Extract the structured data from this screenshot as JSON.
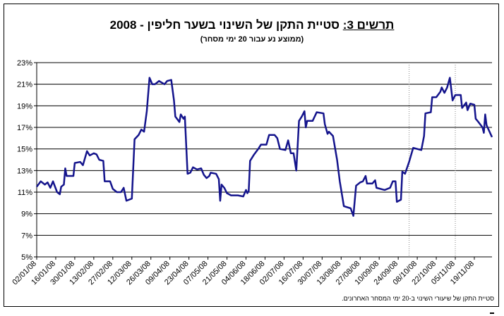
{
  "chart_data": {
    "type": "line",
    "title_label": "תרשים 3:",
    "title": "סטיית התקן של השינוי בשער חליפין - 2008",
    "subtitle": "(ממוצע נע עבור 20 ימי מסחר)",
    "note": "סטיית התקן של שיעורי השינוי ב-20 ימי המסחר האחרונים.",
    "x": [
      "02/01/08",
      "05/01/08",
      "08/01/08",
      "10/01/08",
      "12/01/08",
      "14/01/08",
      "17/01/08",
      "19/01/08",
      "20/01/08",
      "22/01/08",
      "23/01/08",
      "24/01/08",
      "29/01/08",
      "30/01/08",
      "03/02/08",
      "05/02/08",
      "08/02/08",
      "10/02/08",
      "13/02/08",
      "15/02/08",
      "17/02/08",
      "20/02/08",
      "21/02/08",
      "25/02/08",
      "27/02/08",
      "01/03/08",
      "04/03/08",
      "06/03/08",
      "08/03/08",
      "12/03/08",
      "14/03/08",
      "17/03/08",
      "19/03/08",
      "21/03/08",
      "23/03/08",
      "25/03/08",
      "27/03/08",
      "29/03/08",
      "01/04/08",
      "05/04/08",
      "07/04/08",
      "10/04/08",
      "12/04/08",
      "13/04/08",
      "16/04/08",
      "17/04/08",
      "19/04/08",
      "20/04/08",
      "22/04/08",
      "24/04/08",
      "26/04/08",
      "29/04/08",
      "02/05/08",
      "04/05/08",
      "06/05/08",
      "08/05/08",
      "09/05/08",
      "13/05/08",
      "15/05/08",
      "16/05/08",
      "17/05/08",
      "19/05/08",
      "21/05/08",
      "24/05/08",
      "29/05/08",
      "02/06/08",
      "04/06/08",
      "05/06/08",
      "06/06/08",
      "07/06/08",
      "10/06/08",
      "13/06/08",
      "15/06/08",
      "19/06/08",
      "21/06/08",
      "25/06/08",
      "27/06/08",
      "29/06/08",
      "03/07/08",
      "05/07/08",
      "07/07/08",
      "09/07/08",
      "11/07/08",
      "13/07/08",
      "15/07/08",
      "17/07/08",
      "18/07/08",
      "19/07/08",
      "23/07/08",
      "26/07/08",
      "31/07/08",
      "01/08/08",
      "03/08/08",
      "04/08/08",
      "07/08/08",
      "10/08/08",
      "12/08/08",
      "15/08/08",
      "20/08/08",
      "22/08/08",
      "24/08/08",
      "27/08/08",
      "29/08/08",
      "31/08/08",
      "01/09/08",
      "05/09/08",
      "07/09/08",
      "08/09/08",
      "14/09/08",
      "18/09/08",
      "20/09/08",
      "22/09/08",
      "23/09/08",
      "26/09/08",
      "27/09/08",
      "29/09/08",
      "02/10/08",
      "05/10/08",
      "11/10/08",
      "13/10/08",
      "14/10/08",
      "18/10/08",
      "19/10/08",
      "22/10/08",
      "25/10/08",
      "26/10/08",
      "28/10/08",
      "30/10/08",
      "01/11/08",
      "03/11/08",
      "05/11/08",
      "09/11/08",
      "10/11/08",
      "13/11/08",
      "14/11/08",
      "16/11/08",
      "19/11/08",
      "20/11/08",
      "22/11/08",
      "25/11/08",
      "26/11/08",
      "27/11/08",
      "28/11/08",
      "02/12/08"
    ],
    "series": [
      {
        "color": "#14148c",
        "values": [
          11.5,
          12.0,
          11.7,
          11.9,
          11.4,
          12.0,
          11.0,
          10.8,
          11.5,
          11.7,
          13.2,
          12.5,
          12.5,
          13.7,
          13.8,
          13.5,
          14.8,
          14.4,
          14.6,
          14.5,
          14.0,
          13.9,
          12.0,
          12.0,
          11.3,
          11.0,
          11.0,
          11.4,
          10.2,
          10.4,
          15.9,
          16.3,
          16.8,
          16.6,
          18.5,
          21.6,
          21.0,
          21.0,
          21.3,
          21.0,
          21.3,
          21.4,
          19.5,
          18.0,
          17.5,
          18.2,
          17.8,
          18.0,
          12.7,
          12.8,
          13.3,
          13.1,
          13.2,
          12.6,
          12.3,
          12.5,
          12.8,
          12.7,
          12.2,
          10.2,
          11.7,
          11.4,
          10.9,
          10.7,
          10.7,
          10.6,
          11.2,
          10.9,
          11.1,
          13.9,
          14.5,
          15.0,
          15.4,
          15.4,
          16.3,
          16.3,
          16.0,
          15.0,
          14.9,
          15.8,
          14.6,
          14.6,
          13.0,
          17.6,
          18.0,
          18.5,
          17.0,
          17.6,
          17.6,
          18.4,
          18.3,
          17.3,
          16.4,
          16.6,
          16.2,
          14.0,
          12.0,
          9.7,
          9.5,
          8.8,
          11.6,
          11.9,
          12.0,
          12.5,
          11.8,
          11.8,
          12.1,
          11.4,
          11.2,
          11.4,
          12.0,
          12.0,
          10.1,
          10.3,
          12.9,
          12.7,
          13.8,
          15.1,
          14.9,
          16.2,
          18.3,
          18.4,
          19.8,
          19.8,
          20.3,
          20.7,
          20.2,
          20.7,
          21.6,
          19.5,
          20.0,
          20.0,
          18.8,
          19.3,
          18.6,
          19.2,
          19.1,
          17.8,
          17.5,
          17.0,
          16.5,
          18.2,
          17.2,
          16.1
        ]
      }
    ],
    "xlim": [
      "02/01/08",
      "02/12/08"
    ],
    "xticks": [
      "02/01/08",
      "16/01/08",
      "30/01/08",
      "13/02/08",
      "27/02/08",
      "12/03/08",
      "26/03/08",
      "09/04/08",
      "23/04/08",
      "07/05/08",
      "21/05/08",
      "04/06/08",
      "18/06/08",
      "02/07/08",
      "16/07/08",
      "30/07/08",
      "13/08/08",
      "27/08/08",
      "10/09/08",
      "24/09/08",
      "08/10/08",
      "22/10/08",
      "05/11/08",
      "19/11/08"
    ],
    "ylim": [
      5,
      23
    ],
    "yticks": [
      {
        "value": 5,
        "label": "5%"
      },
      {
        "value": 7,
        "label": "7%"
      },
      {
        "value": 9,
        "label": "9%"
      },
      {
        "value": 11,
        "label": "11%"
      },
      {
        "value": 13,
        "label": "13%"
      },
      {
        "value": 15,
        "label": "15%"
      },
      {
        "value": 17,
        "label": "17%"
      },
      {
        "value": 19,
        "label": "19%"
      },
      {
        "value": 21,
        "label": "21%"
      },
      {
        "value": 23,
        "label": "23%"
      }
    ],
    "vlines": [
      "02/10/08",
      "05/11/08"
    ],
    "grid": true
  }
}
